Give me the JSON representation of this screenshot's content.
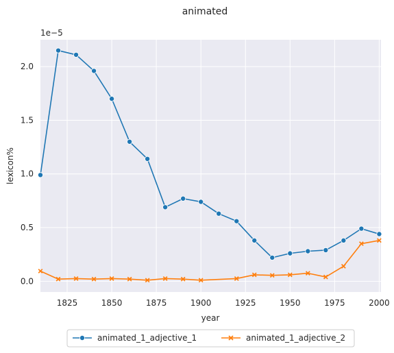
{
  "chart_data": {
    "type": "line",
    "title": "animated",
    "xlabel": "year",
    "ylabel": "lexicon%",
    "y_offset_label": "1e−5",
    "xlim": [
      1810,
      2001
    ],
    "ylim": [
      -0.1,
      2.25
    ],
    "x_ticks": [
      1825,
      1850,
      1875,
      1900,
      1925,
      1950,
      1975,
      2000
    ],
    "y_ticks": [
      0.0,
      0.5,
      1.0,
      1.5,
      2.0
    ],
    "y_tick_labels": [
      "0.0",
      "0.5",
      "1.0",
      "1.5",
      "2.0"
    ],
    "grid": true,
    "legend_position": "bottom-center",
    "series": [
      {
        "name": "animated_1_adjective_1",
        "color": "#1f77b4",
        "marker": "circle",
        "x": [
          1810,
          1820,
          1830,
          1840,
          1850,
          1860,
          1870,
          1880,
          1890,
          1900,
          1910,
          1920,
          1930,
          1940,
          1950,
          1960,
          1970,
          1980,
          1990,
          2000
        ],
        "y": [
          0.99,
          2.15,
          2.11,
          1.96,
          1.7,
          1.3,
          1.14,
          0.69,
          0.77,
          0.74,
          0.63,
          0.56,
          0.38,
          0.22,
          0.26,
          0.28,
          0.29,
          0.38,
          0.49,
          0.44
        ]
      },
      {
        "name": "animated_1_adjective_2",
        "color": "#ff7f0e",
        "marker": "x",
        "x": [
          1810,
          1820,
          1830,
          1840,
          1850,
          1860,
          1870,
          1880,
          1890,
          1900,
          1920,
          1930,
          1940,
          1950,
          1960,
          1970,
          1980,
          1990,
          2000
        ],
        "y": [
          0.095,
          0.02,
          0.025,
          0.02,
          0.025,
          0.02,
          0.01,
          0.025,
          0.02,
          0.01,
          0.025,
          0.06,
          0.055,
          0.06,
          0.075,
          0.04,
          0.14,
          0.35,
          0.38
        ]
      }
    ]
  }
}
